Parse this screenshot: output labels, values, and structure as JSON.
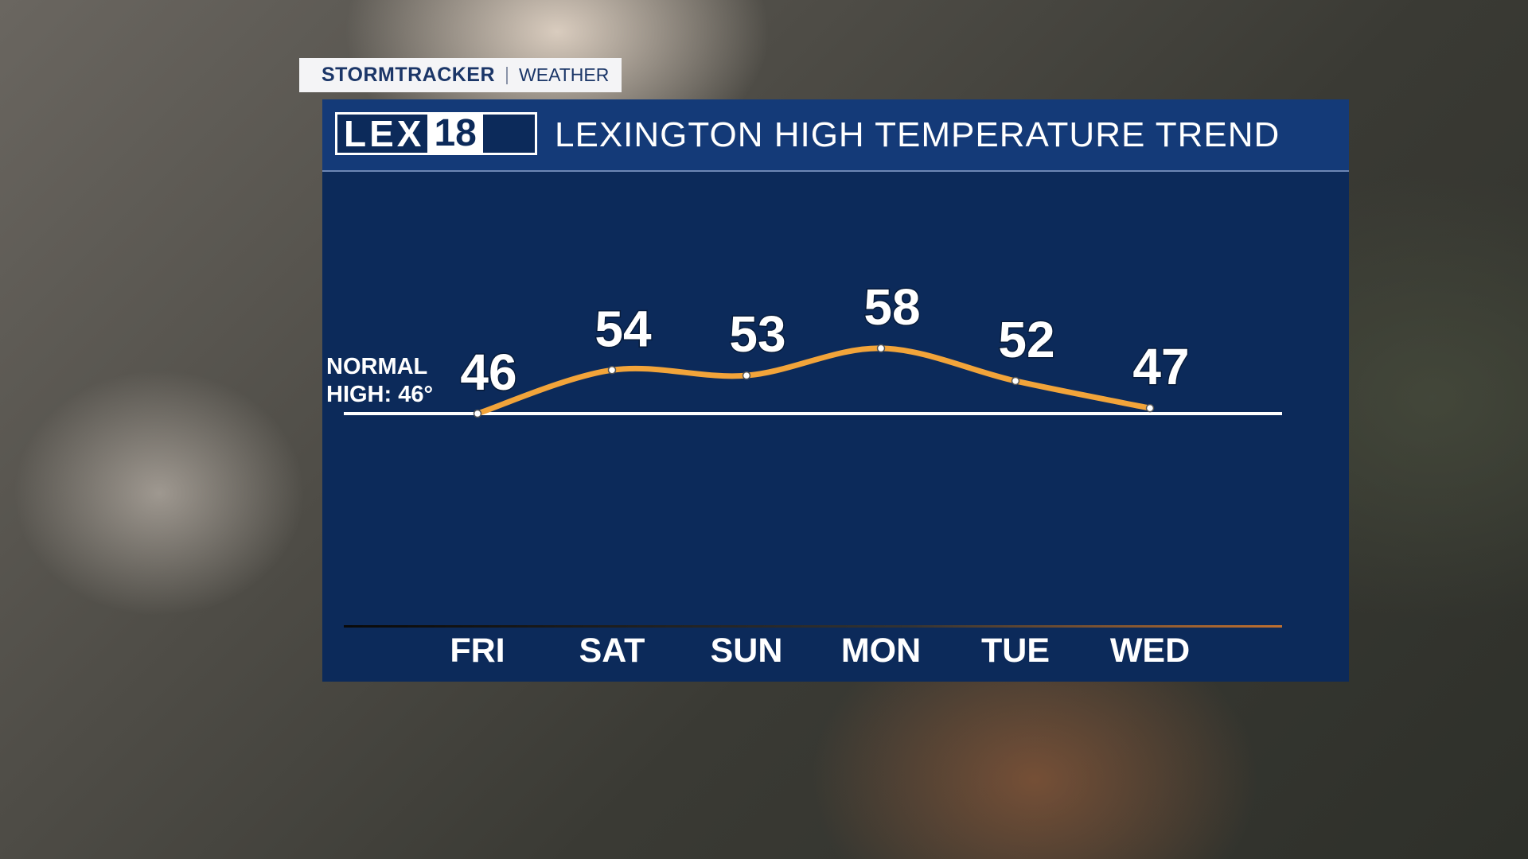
{
  "header": {
    "brand": "STORMTRACKER",
    "section": "WEATHER",
    "logo": [
      "LEX",
      "18"
    ],
    "title": "LEXINGTON HIGH TEMPERATURE TREND"
  },
  "chart_data": {
    "type": "line",
    "categories": [
      "FRI",
      "SAT",
      "SUN",
      "MON",
      "TUE",
      "WED"
    ],
    "values": [
      46,
      54,
      53,
      58,
      52,
      47
    ],
    "color": "#f2a43a",
    "normal_high": {
      "value": 46,
      "label": "NORMAL HIGH: 46°"
    }
  }
}
